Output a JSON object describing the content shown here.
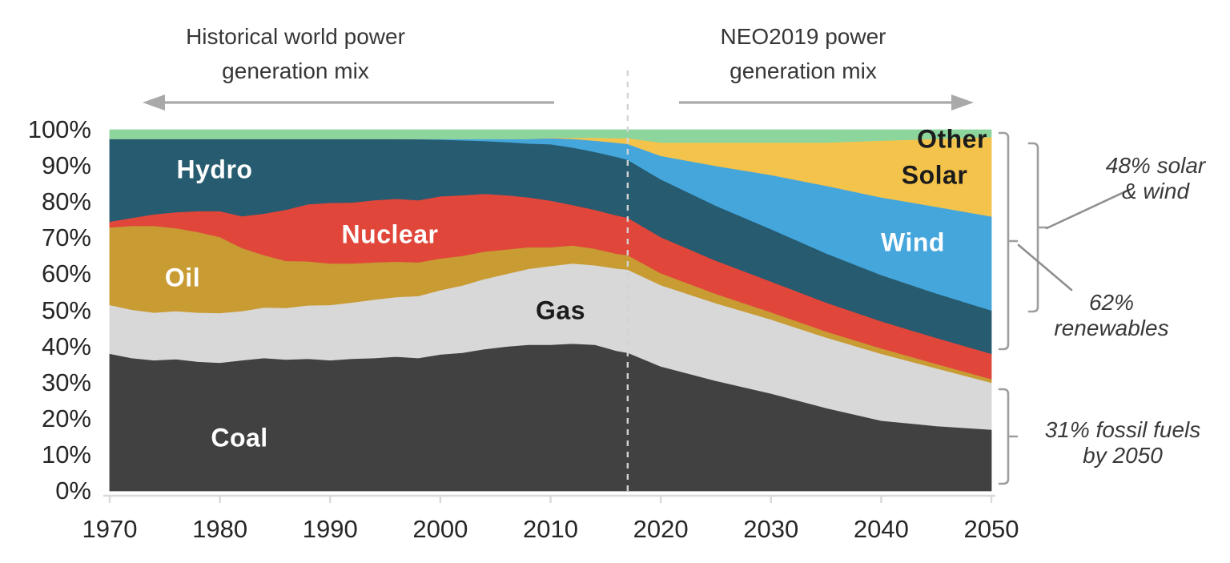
{
  "header": {
    "historical_title_line1": "Historical world power",
    "historical_title_line2": "generation mix",
    "forecast_title_line1": "NEO2019 power",
    "forecast_title_line2": "generation mix"
  },
  "annotations": {
    "solar_wind": {
      "line1": "48% solar",
      "line2": "& wind"
    },
    "renewables": {
      "line1": "62%",
      "line2": "renewables"
    },
    "fossil": {
      "line1": "31% fossil fuels",
      "line2": "by 2050"
    }
  },
  "y_axis": {
    "tick_labels": [
      "100%",
      "90%",
      "80%",
      "70%",
      "60%",
      "50%",
      "40%",
      "30%",
      "20%",
      "10%",
      "0%"
    ]
  },
  "x_axis": {
    "tick_labels": [
      "1970",
      "1980",
      "1990",
      "2000",
      "2010",
      "2020",
      "2030",
      "2040",
      "2050"
    ]
  },
  "colors": {
    "axis_line": "#d9d9d9",
    "divider_line": "#d3d3d3",
    "arrow": "#a9a9a9",
    "bracket": "#9e9e9e",
    "connector": "#8f8f8f",
    "text": "#3a3a3a"
  },
  "chart_data": {
    "type": "area",
    "stacked": true,
    "unit": "% share of world power generation",
    "xlim": [
      1970,
      2050
    ],
    "ylim": [
      0,
      100
    ],
    "divider_year": 2017,
    "grid": false,
    "x": [
      1970,
      1972,
      1974,
      1976,
      1978,
      1980,
      1982,
      1984,
      1986,
      1988,
      1990,
      1992,
      1994,
      1996,
      1998,
      2000,
      2002,
      2004,
      2006,
      2008,
      2010,
      2012,
      2014,
      2016,
      2017,
      2020,
      2025,
      2030,
      2035,
      2040,
      2045,
      2050
    ],
    "series": [
      {
        "key": "coal",
        "name": "Coal",
        "color": "#414141",
        "label_color": "#ffffff",
        "values": [
          38.0,
          36.8,
          36.2,
          36.5,
          35.8,
          35.5,
          36.2,
          36.8,
          36.4,
          36.6,
          36.2,
          36.6,
          36.8,
          37.2,
          36.8,
          37.8,
          38.3,
          39.3,
          40.0,
          40.5,
          40.5,
          40.8,
          40.5,
          38.8,
          38.3,
          34.5,
          30.5,
          27.0,
          23.0,
          19.5,
          18.0,
          17.0
        ]
      },
      {
        "key": "gas",
        "name": "Gas",
        "color": "#d8d8d8",
        "label_color": "#1c1c1c",
        "values": [
          13.5,
          13.4,
          13.2,
          13.3,
          13.6,
          13.8,
          13.6,
          14.0,
          14.3,
          14.8,
          15.3,
          15.6,
          16.2,
          16.5,
          17.2,
          17.8,
          18.6,
          19.4,
          20.1,
          21.0,
          21.8,
          22.2,
          22.0,
          22.8,
          23.0,
          22.5,
          21.5,
          20.5,
          19.5,
          18.5,
          16.0,
          13.0
        ]
      },
      {
        "key": "oil",
        "name": "Oil",
        "color": "#c89b33",
        "label_color": "#ffffff",
        "values": [
          21.5,
          23.2,
          24.0,
          23.0,
          22.3,
          21.0,
          17.5,
          14.5,
          13.0,
          12.2,
          11.5,
          10.8,
          10.3,
          9.8,
          9.3,
          8.8,
          8.2,
          7.6,
          6.8,
          6.0,
          5.2,
          5.0,
          4.6,
          4.1,
          4.0,
          3.3,
          2.6,
          2.0,
          1.7,
          1.5,
          1.2,
          1.0
        ]
      },
      {
        "key": "nuclear",
        "name": "Nuclear",
        "color": "#e0463a",
        "label_color": "#ffffff",
        "values": [
          1.6,
          2.2,
          3.2,
          4.4,
          5.8,
          7.2,
          8.8,
          11.5,
          14.2,
          15.8,
          16.8,
          16.9,
          17.2,
          17.4,
          17.2,
          17.2,
          16.8,
          16.0,
          15.0,
          13.8,
          12.9,
          11.2,
          10.8,
          10.6,
          10.4,
          10.0,
          9.2,
          8.5,
          8.0,
          7.5,
          7.2,
          7.0
        ]
      },
      {
        "key": "hydro",
        "name": "Hydro",
        "color": "#265b70",
        "label_color": "#ffffff",
        "values": [
          22.9,
          21.9,
          20.9,
          20.3,
          20.0,
          20.0,
          21.4,
          20.7,
          19.6,
          18.1,
          17.7,
          17.6,
          17.0,
          16.6,
          16.9,
          15.7,
          15.2,
          14.6,
          14.7,
          14.9,
          15.6,
          15.9,
          16.0,
          16.2,
          16.0,
          16.0,
          15.2,
          14.5,
          13.6,
          12.8,
          12.3,
          12.0
        ]
      },
      {
        "key": "wind",
        "name": "Wind",
        "color": "#45a6dc",
        "label_color": "#ffffff",
        "values": [
          0,
          0,
          0,
          0,
          0,
          0,
          0,
          0,
          0,
          0,
          0,
          0,
          0,
          0,
          0.1,
          0.2,
          0.4,
          0.6,
          0.9,
          1.3,
          1.7,
          2.4,
          3.1,
          3.9,
          4.4,
          6.5,
          11.0,
          15.0,
          18.7,
          21.5,
          24.0,
          26.0
        ]
      },
      {
        "key": "solar",
        "name": "Solar",
        "color": "#f3c34b",
        "label_color": "#1c1c1c",
        "values": [
          0,
          0,
          0,
          0,
          0,
          0,
          0,
          0,
          0,
          0,
          0,
          0,
          0,
          0,
          0,
          0,
          0,
          0,
          0,
          0,
          0.1,
          0.3,
          0.8,
          1.3,
          1.6,
          3.7,
          6.5,
          9.0,
          12.0,
          15.7,
          18.8,
          22.0
        ]
      },
      {
        "key": "other",
        "name": "Other",
        "color": "#8cd69e",
        "label_color": "#1c1c1c",
        "values": [
          2.5,
          2.5,
          2.5,
          2.5,
          2.5,
          2.5,
          2.5,
          2.5,
          2.5,
          2.5,
          2.5,
          2.5,
          2.5,
          2.5,
          2.5,
          2.5,
          2.5,
          2.5,
          2.5,
          2.5,
          2.2,
          2.2,
          2.2,
          2.3,
          2.3,
          3.5,
          3.5,
          3.5,
          3.5,
          3.0,
          2.5,
          2.0
        ]
      }
    ],
    "callouts": {
      "solar_wind_2050_pct": 48,
      "renewables_2050_pct": 62,
      "fossil_fuels_2050_pct": 31
    }
  }
}
